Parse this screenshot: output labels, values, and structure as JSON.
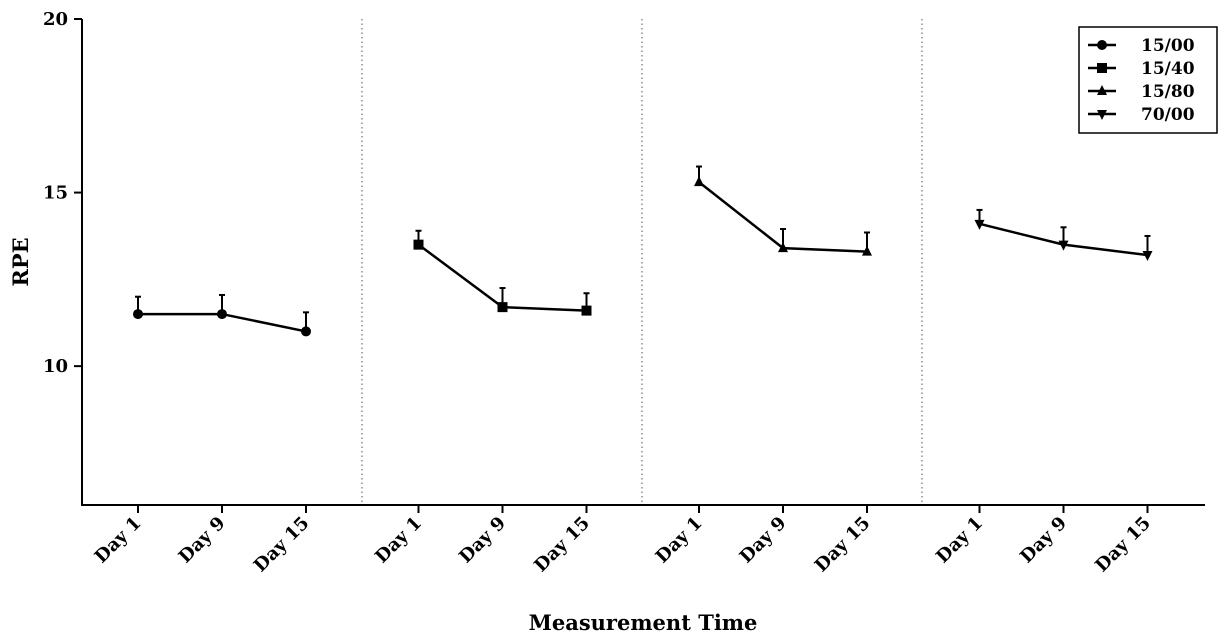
{
  "chart_data": {
    "type": "line",
    "xlabel": "Measurement Time",
    "ylabel": "RPE",
    "ylim": [
      6,
      20
    ],
    "yticks": [
      10,
      15,
      20
    ],
    "grid": false,
    "legend_position": "top-right",
    "group_separators": "dotted",
    "series": [
      {
        "name": "15/00",
        "marker": "circle",
        "categories": [
          "Day 1",
          "Day 9",
          "Day 15"
        ],
        "values": [
          11.5,
          11.5,
          11.0
        ],
        "error": [
          0.5,
          0.55,
          0.55
        ]
      },
      {
        "name": "15/40",
        "marker": "square",
        "categories": [
          "Day 1",
          "Day 9",
          "Day 15"
        ],
        "values": [
          13.5,
          11.7,
          11.6
        ],
        "error": [
          0.4,
          0.55,
          0.5
        ]
      },
      {
        "name": "15/80",
        "marker": "triangle-up",
        "categories": [
          "Day 1",
          "Day 9",
          "Day 15"
        ],
        "values": [
          15.3,
          13.4,
          13.3
        ],
        "error": [
          0.45,
          0.55,
          0.55
        ]
      },
      {
        "name": "70/00",
        "marker": "triangle-down",
        "categories": [
          "Day 1",
          "Day 9",
          "Day 15"
        ],
        "values": [
          14.1,
          13.5,
          13.2
        ],
        "error": [
          0.4,
          0.5,
          0.55
        ]
      }
    ]
  }
}
